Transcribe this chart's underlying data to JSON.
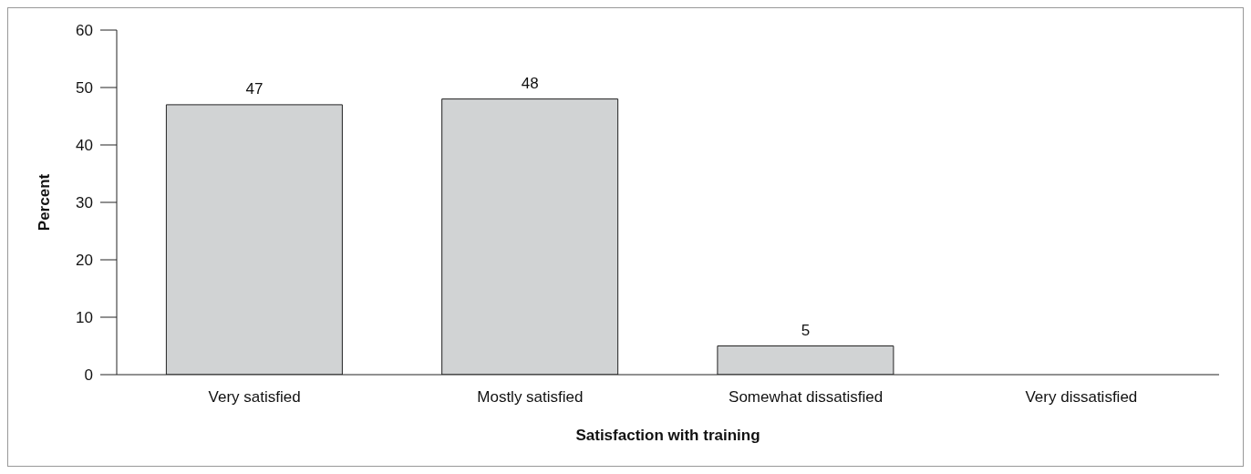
{
  "chart_data": {
    "type": "bar",
    "xlabel": "Satisfaction with training",
    "ylabel": "Percent",
    "categories": [
      "Very satisfied",
      "Mostly satisfied",
      "Somewhat dissatisfied",
      "Very dissatisfied"
    ],
    "values": [
      47,
      48,
      5,
      0
    ],
    "value_labels": [
      "47",
      "48",
      "5",
      null
    ],
    "color": "#d1d3d4",
    "ylim": [
      0,
      60
    ],
    "yticks": [
      0,
      10,
      20,
      30,
      40,
      50,
      60
    ],
    "grid": false,
    "legend": false
  }
}
